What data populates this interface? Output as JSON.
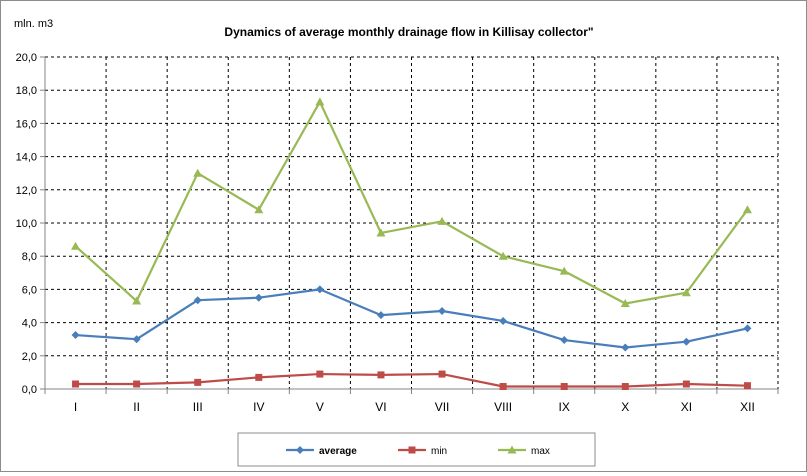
{
  "chart_data": {
    "type": "line",
    "title": "Dynamics of average monthly drainage flow in Killisay collector\"",
    "ylabel": "mln. m3",
    "xlabel": "",
    "categories": [
      "I",
      "II",
      "III",
      "IV",
      "V",
      "VI",
      "VII",
      "VIII",
      "IX",
      "X",
      "XI",
      "XII"
    ],
    "ylim": [
      0,
      20
    ],
    "ytick_step": 2,
    "yticks": [
      "0,0",
      "2,0",
      "4,0",
      "6,0",
      "8,0",
      "10,0",
      "12,0",
      "14,0",
      "16,0",
      "18,0",
      "20,0"
    ],
    "grid": true,
    "legend_position": "bottom",
    "series": [
      {
        "name": "average",
        "color": "#4a7ebb",
        "marker": "diamond",
        "values": [
          3.25,
          3.0,
          5.35,
          5.5,
          6.0,
          4.45,
          4.7,
          4.1,
          2.95,
          2.5,
          2.85,
          3.65
        ]
      },
      {
        "name": "min",
        "color": "#be4b48",
        "marker": "square",
        "values": [
          0.3,
          0.3,
          0.4,
          0.7,
          0.9,
          0.85,
          0.9,
          0.15,
          0.15,
          0.15,
          0.3,
          0.2
        ]
      },
      {
        "name": "max",
        "color": "#98b954",
        "marker": "triangle",
        "values": [
          8.6,
          5.3,
          13.0,
          10.8,
          17.3,
          9.4,
          10.1,
          8.0,
          7.1,
          5.15,
          5.8,
          10.8
        ]
      }
    ]
  }
}
